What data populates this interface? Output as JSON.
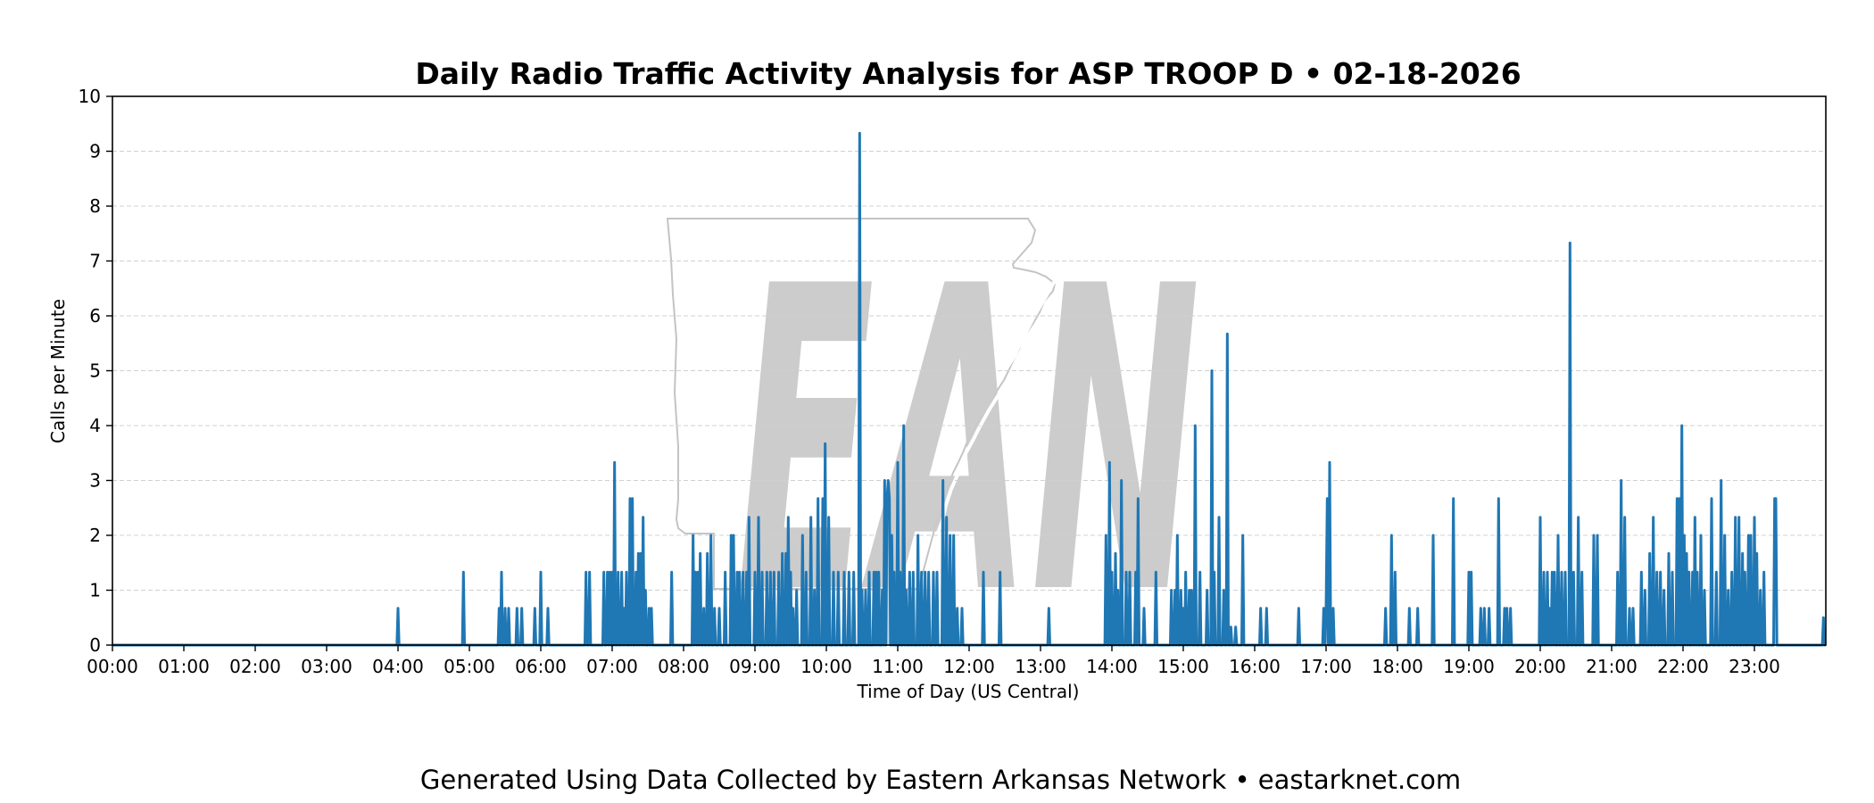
{
  "chart_data": {
    "type": "area",
    "title": "Daily Radio Traffic Activity Analysis for ASP TROOP D • 02-18-2026",
    "xlabel": "Time of Day (US Central)",
    "ylabel": "Calls per Minute",
    "xlim": [
      "00:00",
      "24:00"
    ],
    "ylim": [
      0,
      10
    ],
    "x_ticks": [
      "00:00",
      "01:00",
      "02:00",
      "03:00",
      "04:00",
      "05:00",
      "06:00",
      "07:00",
      "08:00",
      "09:00",
      "10:00",
      "11:00",
      "12:00",
      "13:00",
      "14:00",
      "15:00",
      "16:00",
      "17:00",
      "18:00",
      "19:00",
      "20:00",
      "21:00",
      "22:00",
      "23:00"
    ],
    "y_ticks": [
      "0",
      "1",
      "2",
      "3",
      "4",
      "5",
      "6",
      "7",
      "8",
      "9",
      "10"
    ],
    "grid": "horizontal dashed",
    "line_color": "#1f77b4",
    "fill_color": "#bcd6ea",
    "series": [
      {
        "points": [
          [
            "04:00",
            0.67
          ],
          [
            "04:55",
            1.33
          ],
          [
            "05:25",
            0.67
          ],
          [
            "05:27",
            1.33
          ],
          [
            "05:30",
            0.67
          ],
          [
            "05:33",
            0.67
          ],
          [
            "05:40",
            0.67
          ],
          [
            "05:44",
            0.67
          ],
          [
            "05:55",
            0.67
          ],
          [
            "06:00",
            1.33
          ],
          [
            "06:06",
            0.67
          ],
          [
            "06:38",
            1.33
          ],
          [
            "06:41",
            1.33
          ],
          [
            "06:53",
            1.33
          ],
          [
            "06:56",
            1.33
          ],
          [
            "06:58",
            1.33
          ],
          [
            "07:00",
            1.33
          ],
          [
            "07:02",
            3.33
          ],
          [
            "07:05",
            1.33
          ],
          [
            "07:08",
            1.33
          ],
          [
            "07:10",
            0.67
          ],
          [
            "07:12",
            1.33
          ],
          [
            "07:15",
            2.67
          ],
          [
            "07:17",
            2.67
          ],
          [
            "07:20",
            1.33
          ],
          [
            "07:22",
            1.67
          ],
          [
            "07:24",
            1.67
          ],
          [
            "07:26",
            2.33
          ],
          [
            "07:28",
            1.0
          ],
          [
            "07:31",
            0.67
          ],
          [
            "07:33",
            0.67
          ],
          [
            "07:50",
            1.33
          ],
          [
            "08:08",
            2.0
          ],
          [
            "08:10",
            1.33
          ],
          [
            "08:12",
            1.33
          ],
          [
            "08:14",
            1.67
          ],
          [
            "08:17",
            0.67
          ],
          [
            "08:20",
            1.67
          ],
          [
            "08:23",
            2.0
          ],
          [
            "08:26",
            0.67
          ],
          [
            "08:30",
            0.67
          ],
          [
            "08:35",
            1.33
          ],
          [
            "08:40",
            2.0
          ],
          [
            "08:42",
            2.0
          ],
          [
            "08:45",
            1.33
          ],
          [
            "08:47",
            1.33
          ],
          [
            "08:50",
            1.33
          ],
          [
            "08:53",
            1.33
          ],
          [
            "08:55",
            2.33
          ],
          [
            "09:00",
            1.33
          ],
          [
            "09:03",
            2.33
          ],
          [
            "09:06",
            1.33
          ],
          [
            "09:10",
            1.33
          ],
          [
            "09:13",
            1.33
          ],
          [
            "09:16",
            1.33
          ],
          [
            "09:20",
            1.33
          ],
          [
            "09:23",
            1.67
          ],
          [
            "09:26",
            1.67
          ],
          [
            "09:28",
            2.33
          ],
          [
            "09:30",
            1.33
          ],
          [
            "09:32",
            0.67
          ],
          [
            "09:35",
            1.0
          ],
          [
            "09:40",
            2.0
          ],
          [
            "09:43",
            1.33
          ],
          [
            "09:47",
            2.33
          ],
          [
            "09:50",
            1.0
          ],
          [
            "09:53",
            2.67
          ],
          [
            "09:57",
            2.67
          ],
          [
            "09:59",
            3.67
          ],
          [
            "10:02",
            2.33
          ],
          [
            "10:06",
            1.33
          ],
          [
            "10:10",
            1.33
          ],
          [
            "10:15",
            1.33
          ],
          [
            "10:19",
            1.33
          ],
          [
            "10:23",
            1.33
          ],
          [
            "10:28",
            9.33
          ],
          [
            "10:30",
            1.0
          ],
          [
            "10:33",
            1.0
          ],
          [
            "10:36",
            1.33
          ],
          [
            "10:40",
            1.33
          ],
          [
            "10:42",
            1.33
          ],
          [
            "10:44",
            1.33
          ],
          [
            "10:47",
            1.0
          ],
          [
            "10:49",
            3.0
          ],
          [
            "10:51",
            2.67
          ],
          [
            "10:52",
            3.0
          ],
          [
            "10:53",
            2.67
          ],
          [
            "10:55",
            2.0
          ],
          [
            "10:57",
            1.33
          ],
          [
            "11:00",
            3.33
          ],
          [
            "11:02",
            1.33
          ],
          [
            "11:05",
            4.0
          ],
          [
            "11:07",
            1.0
          ],
          [
            "11:10",
            1.33
          ],
          [
            "11:13",
            1.33
          ],
          [
            "11:17",
            2.0
          ],
          [
            "11:20",
            1.33
          ],
          [
            "11:23",
            1.33
          ],
          [
            "11:26",
            1.33
          ],
          [
            "11:30",
            1.33
          ],
          [
            "11:33",
            1.33
          ],
          [
            "11:38",
            3.0
          ],
          [
            "11:41",
            2.33
          ],
          [
            "11:44",
            2.0
          ],
          [
            "11:47",
            2.0
          ],
          [
            "11:50",
            0.67
          ],
          [
            "11:54",
            0.67
          ],
          [
            "12:12",
            1.33
          ],
          [
            "12:26",
            1.33
          ],
          [
            "13:07",
            0.67
          ],
          [
            "13:55",
            2.0
          ],
          [
            "13:58",
            3.33
          ],
          [
            "14:00",
            1.33
          ],
          [
            "14:03",
            1.67
          ],
          [
            "14:05",
            1.0
          ],
          [
            "14:08",
            3.0
          ],
          [
            "14:12",
            1.33
          ],
          [
            "14:15",
            1.33
          ],
          [
            "14:20",
            1.33
          ],
          [
            "14:22",
            2.67
          ],
          [
            "14:27",
            0.67
          ],
          [
            "14:37",
            1.33
          ],
          [
            "14:50",
            1.0
          ],
          [
            "14:53",
            1.0
          ],
          [
            "14:55",
            2.0
          ],
          [
            "14:58",
            1.0
          ],
          [
            "15:00",
            0.67
          ],
          [
            "15:02",
            1.33
          ],
          [
            "15:05",
            1.0
          ],
          [
            "15:07",
            1.0
          ],
          [
            "15:10",
            4.0
          ],
          [
            "15:14",
            1.33
          ],
          [
            "15:20",
            1.0
          ],
          [
            "15:24",
            5.0
          ],
          [
            "15:26",
            1.33
          ],
          [
            "15:30",
            2.33
          ],
          [
            "15:34",
            1.0
          ],
          [
            "15:37",
            5.67
          ],
          [
            "15:40",
            0.33
          ],
          [
            "15:44",
            0.33
          ],
          [
            "15:50",
            2.0
          ],
          [
            "16:05",
            0.67
          ],
          [
            "16:10",
            0.67
          ],
          [
            "16:37",
            0.67
          ],
          [
            "16:58",
            0.67
          ],
          [
            "17:00",
            0.67
          ],
          [
            "17:01",
            2.67
          ],
          [
            "17:03",
            3.33
          ],
          [
            "17:06",
            0.67
          ],
          [
            "17:50",
            0.67
          ],
          [
            "17:55",
            2.0
          ],
          [
            "17:58",
            1.33
          ],
          [
            "18:10",
            0.67
          ],
          [
            "18:17",
            0.67
          ],
          [
            "18:30",
            2.0
          ],
          [
            "18:47",
            2.67
          ],
          [
            "19:00",
            1.33
          ],
          [
            "19:02",
            1.33
          ],
          [
            "19:10",
            0.67
          ],
          [
            "19:13",
            0.67
          ],
          [
            "19:17",
            0.67
          ],
          [
            "19:25",
            2.67
          ],
          [
            "19:30",
            0.67
          ],
          [
            "19:32",
            0.67
          ],
          [
            "19:35",
            0.67
          ],
          [
            "20:00",
            2.33
          ],
          [
            "20:03",
            1.33
          ],
          [
            "20:06",
            1.33
          ],
          [
            "20:08",
            0.67
          ],
          [
            "20:10",
            1.33
          ],
          [
            "20:12",
            1.33
          ],
          [
            "20:15",
            2.0
          ],
          [
            "20:18",
            1.33
          ],
          [
            "20:21",
            1.33
          ],
          [
            "20:25",
            7.33
          ],
          [
            "20:28",
            1.33
          ],
          [
            "20:32",
            2.33
          ],
          [
            "20:35",
            1.33
          ],
          [
            "20:45",
            2.0
          ],
          [
            "20:48",
            2.0
          ],
          [
            "21:05",
            1.33
          ],
          [
            "21:08",
            3.0
          ],
          [
            "21:11",
            2.33
          ],
          [
            "21:15",
            0.67
          ],
          [
            "21:18",
            0.67
          ],
          [
            "21:25",
            1.33
          ],
          [
            "21:28",
            1.0
          ],
          [
            "21:32",
            1.67
          ],
          [
            "21:35",
            2.33
          ],
          [
            "21:38",
            1.33
          ],
          [
            "21:41",
            1.33
          ],
          [
            "21:44",
            1.0
          ],
          [
            "21:48",
            1.67
          ],
          [
            "21:51",
            1.33
          ],
          [
            "21:55",
            2.67
          ],
          [
            "21:57",
            2.67
          ],
          [
            "21:59",
            4.0
          ],
          [
            "22:01",
            2.0
          ],
          [
            "22:03",
            1.67
          ],
          [
            "22:05",
            1.33
          ],
          [
            "22:08",
            1.33
          ],
          [
            "22:10",
            2.33
          ],
          [
            "22:12",
            1.33
          ],
          [
            "22:15",
            2.0
          ],
          [
            "22:18",
            1.0
          ],
          [
            "22:24",
            2.67
          ],
          [
            "22:28",
            1.33
          ],
          [
            "22:32",
            3.0
          ],
          [
            "22:35",
            2.0
          ],
          [
            "22:38",
            1.0
          ],
          [
            "22:41",
            1.33
          ],
          [
            "22:44",
            2.33
          ],
          [
            "22:47",
            2.33
          ],
          [
            "22:50",
            1.67
          ],
          [
            "22:52",
            1.33
          ],
          [
            "22:55",
            2.0
          ],
          [
            "22:57",
            2.0
          ],
          [
            "23:00",
            2.33
          ],
          [
            "23:02",
            1.67
          ],
          [
            "23:05",
            1.0
          ],
          [
            "23:08",
            1.33
          ],
          [
            "23:17",
            2.67
          ],
          [
            "23:18",
            2.67
          ],
          [
            "23:58",
            0.5
          ]
        ]
      }
    ]
  },
  "watermark": {
    "text": "EAN"
  },
  "footer": {
    "text": "Generated Using Data Collected by Eastern Arkansas Network • eastarknet.com"
  }
}
